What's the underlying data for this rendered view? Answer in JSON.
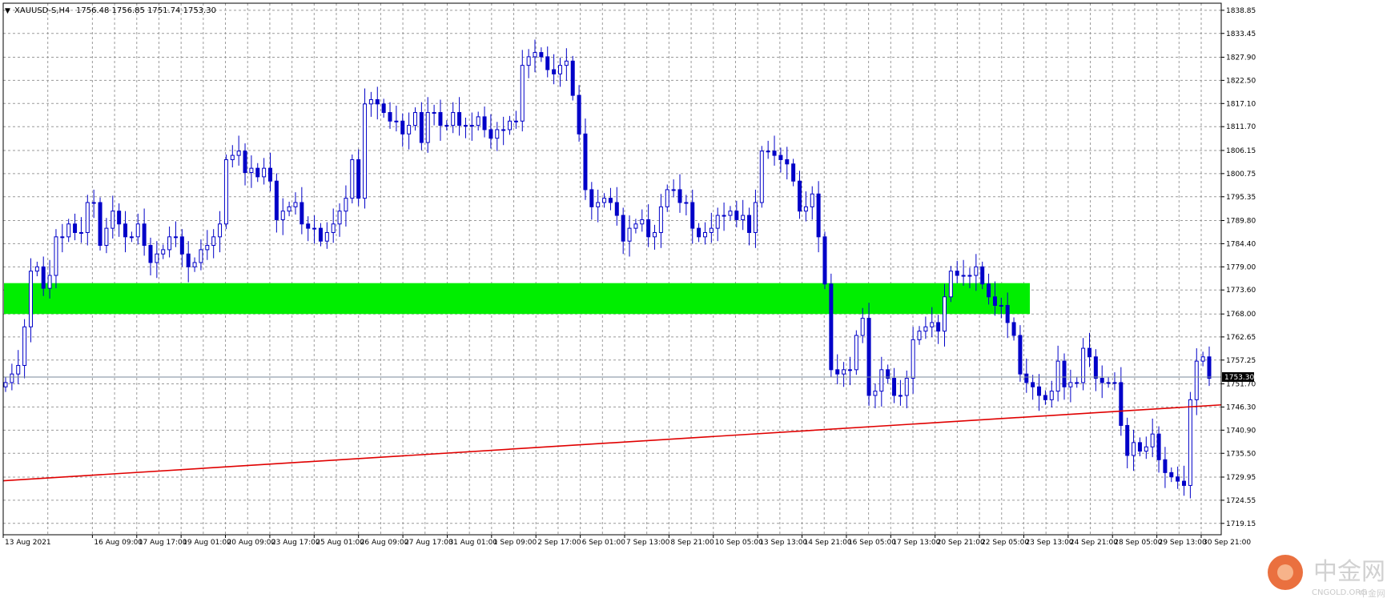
{
  "header": {
    "caret": "▼",
    "symbol": "XAUUSD-S,H4",
    "ohlc": "1756.48 1756.85 1751.74 1753.30"
  },
  "price_label": "1753.30",
  "watermark": {
    "cn": "中金网",
    "en": "CNGOLD.ORG",
    "cn2": "中金网"
  },
  "colors": {
    "background": "#ffffff",
    "candle": "#0000c8",
    "grid": "#9a9a9a",
    "zone": "#00ee00",
    "trendline": "#e00000",
    "price_line": "#7a8a99"
  },
  "chart_data": {
    "type": "candlestick",
    "timeframe": "H4",
    "ylim": [
      1716.5,
      1840.5
    ],
    "y_ticks": [
      "1838.85",
      "1833.45",
      "1827.90",
      "1822.50",
      "1817.10",
      "1811.70",
      "1806.15",
      "1800.75",
      "1795.35",
      "1789.80",
      "1784.40",
      "1779.00",
      "1773.60",
      "1768.00",
      "1762.65",
      "1757.25",
      "1751.70",
      "1746.30",
      "1740.90",
      "1735.50",
      "1729.95",
      "1724.55",
      "1719.15"
    ],
    "x_ticks": [
      "13 Aug 2021",
      "16 Aug 09:00",
      "17 Aug 17:00",
      "19 Aug 01:00",
      "20 Aug 09:00",
      "23 Aug 17:00",
      "25 Aug 01:00",
      "26 Aug 09:00",
      "27 Aug 17:00",
      "31 Aug 01:00",
      "1 Sep 09:00",
      "2 Sep 17:00",
      "6 Sep 01:00",
      "7 Sep 13:00",
      "8 Sep 21:00",
      "10 Sep 05:00",
      "13 Sep 13:00",
      "14 Sep 21:00",
      "16 Sep 05:00",
      "17 Sep 13:00",
      "20 Sep 21:00",
      "22 Sep 05:00",
      "23 Sep 13:00",
      "24 Sep 21:00",
      "28 Sep 05:00",
      "29 Sep 13:00",
      "30 Sep 21:00"
    ],
    "last_price": 1753.3,
    "support_zone": {
      "from": 1768.0,
      "to": 1775.2
    },
    "trendline": {
      "start": 1729.1,
      "end": 1746.8
    },
    "closes": [
      1752,
      1754,
      1756,
      1765,
      1778,
      1779,
      1774,
      1777,
      1786,
      1786,
      1789,
      1787,
      1787,
      1794,
      1794,
      1784,
      1788,
      1792,
      1789,
      1786,
      1786,
      1789,
      1784,
      1780,
      1782,
      1783,
      1786,
      1786,
      1782,
      1779,
      1780,
      1783,
      1784,
      1786,
      1789,
      1804,
      1805,
      1806,
      1801,
      1802,
      1800,
      1802,
      1799,
      1790,
      1792,
      1793,
      1794,
      1789,
      1788,
      1788,
      1785,
      1787,
      1789,
      1792,
      1795,
      1804,
      1795,
      1817,
      1818,
      1817,
      1815,
      1813,
      1813,
      1810,
      1812,
      1815,
      1808,
      1815,
      1815,
      1812,
      1812,
      1815,
      1812,
      1812,
      1812,
      1814,
      1811,
      1809,
      1811,
      1811,
      1813,
      1813,
      1826,
      1828,
      1829,
      1828,
      1825,
      1824,
      1826,
      1827,
      1819,
      1810,
      1797,
      1793,
      1794,
      1795,
      1794,
      1791,
      1785,
      1788,
      1789,
      1790,
      1786,
      1787,
      1793,
      1797,
      1797,
      1794,
      1794,
      1788,
      1786,
      1787,
      1788,
      1791,
      1791,
      1792,
      1790,
      1791,
      1787,
      1794,
      1806,
      1806,
      1805,
      1804,
      1803,
      1799,
      1792,
      1793,
      1796,
      1786,
      1775,
      1755,
      1754,
      1755,
      1755,
      1763,
      1767,
      1749,
      1750,
      1755,
      1753,
      1749,
      1749,
      1753,
      1762,
      1764,
      1765,
      1766,
      1764,
      1772,
      1778,
      1777,
      1777,
      1777,
      1779,
      1775,
      1772,
      1770,
      1770,
      1766,
      1763,
      1754,
      1752,
      1751,
      1749,
      1748,
      1750,
      1757,
      1751,
      1752,
      1752,
      1760,
      1758,
      1753,
      1752,
      1752,
      1752,
      1742,
      1735,
      1738,
      1736,
      1737,
      1740,
      1734,
      1731,
      1730,
      1729,
      1728,
      1748,
      1757,
      1758,
      1753
    ]
  }
}
